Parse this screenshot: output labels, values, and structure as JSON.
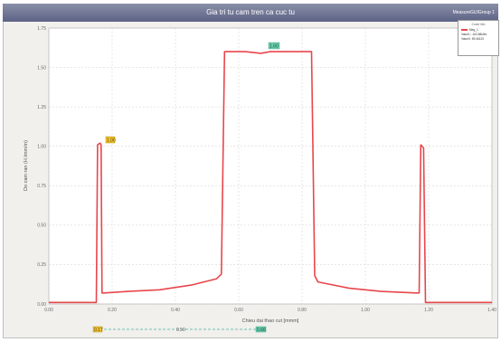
{
  "window": {
    "title": "Gia tri tu cam tren ca cuc tu",
    "name": "MeasureGUIGroup 1"
  },
  "legend": {
    "header": "Curve Info",
    "series_name": "Meg_1",
    "line1": "Value1: -163.68s0m",
    "line2": "ValueX: 89.46120"
  },
  "cursors": {
    "left": "0.17",
    "mid": "0.50",
    "right": "0.66",
    "flag": "1.00",
    "peak": "1.60"
  },
  "colors": {
    "curve": "#e8464b",
    "grid": "#cfcfcf",
    "cursor": "#45b39d",
    "marker": "#f1c232"
  },
  "chart_data": {
    "type": "line",
    "ylabel": "Do cam ran (H.Imm/m)",
    "xlabel": "Chieu dai thao cut [mmm]",
    "xlim": [
      0,
      1.4
    ],
    "ylim": [
      0,
      1.75
    ],
    "x_ticks": [
      "0.00",
      "0.20",
      "0.40",
      "0.60",
      "0.80",
      "1.00",
      "1.20",
      "1.40"
    ],
    "y_ticks": [
      "0.00",
      "0.25",
      "0.50",
      "0.75",
      "1.00",
      "1.25",
      "1.50",
      "1.75"
    ],
    "series": [
      {
        "x": [
          0.0,
          0.15,
          0.154,
          0.162,
          0.165,
          0.168,
          0.175,
          0.25,
          0.35,
          0.45,
          0.53,
          0.545,
          0.555,
          0.62,
          0.67,
          0.7,
          0.76,
          0.83,
          0.84,
          0.85,
          0.95,
          1.05,
          1.16,
          1.17,
          1.175,
          1.184,
          1.19,
          1.4
        ],
        "y": [
          0.01,
          0.01,
          1.01,
          1.02,
          1.01,
          0.07,
          0.07,
          0.08,
          0.09,
          0.12,
          0.16,
          0.19,
          1.6,
          1.6,
          1.59,
          1.6,
          1.6,
          1.6,
          0.18,
          0.14,
          0.1,
          0.08,
          0.07,
          0.07,
          1.01,
          0.99,
          0.01,
          0.01
        ]
      }
    ]
  }
}
